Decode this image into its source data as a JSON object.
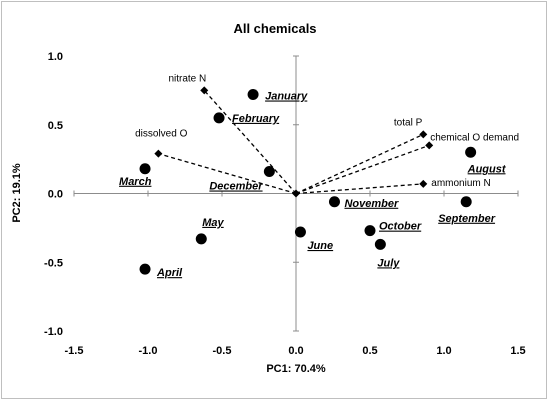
{
  "chart_data": {
    "type": "scatter",
    "title": "All chemicals",
    "xlabel": "PC1: 70.4%",
    "ylabel": "PC2: 19.1%",
    "xlim": [
      -1.5,
      1.5
    ],
    "ylim": [
      -1.0,
      1.0
    ],
    "xticks": [
      "-1.5",
      "-1.0",
      "-0.5",
      "0.0",
      "0.5",
      "1.0",
      "1.5"
    ],
    "yticks": [
      "-1.0",
      "-0.5",
      "0.0",
      "0.5",
      "1.0"
    ],
    "grid": false,
    "origin": [
      0,
      0
    ],
    "scores": [
      {
        "label": "January",
        "x": -0.29,
        "y": 0.72
      },
      {
        "label": "February",
        "x": -0.52,
        "y": 0.55
      },
      {
        "label": "March",
        "x": -1.02,
        "y": 0.18
      },
      {
        "label": "December",
        "x": -0.18,
        "y": 0.16
      },
      {
        "label": "May",
        "x": -0.64,
        "y": -0.33
      },
      {
        "label": "April",
        "x": -1.02,
        "y": -0.55
      },
      {
        "label": "June",
        "x": 0.03,
        "y": -0.28
      },
      {
        "label": "November",
        "x": 0.26,
        "y": -0.06
      },
      {
        "label": "October",
        "x": 0.5,
        "y": -0.27
      },
      {
        "label": "July",
        "x": 0.57,
        "y": -0.37
      },
      {
        "label": "August",
        "x": 1.18,
        "y": 0.3
      },
      {
        "label": "September",
        "x": 1.15,
        "y": -0.06
      }
    ],
    "loadings": [
      {
        "label": "nitrate N",
        "x": -0.62,
        "y": 0.75
      },
      {
        "label": "dissolved O",
        "x": -0.93,
        "y": 0.29
      },
      {
        "label": "total P",
        "x": 0.86,
        "y": 0.43
      },
      {
        "label": "chemical O demand",
        "x": 0.9,
        "y": 0.35
      },
      {
        "label": "ammonium N",
        "x": 0.86,
        "y": 0.07
      }
    ]
  }
}
